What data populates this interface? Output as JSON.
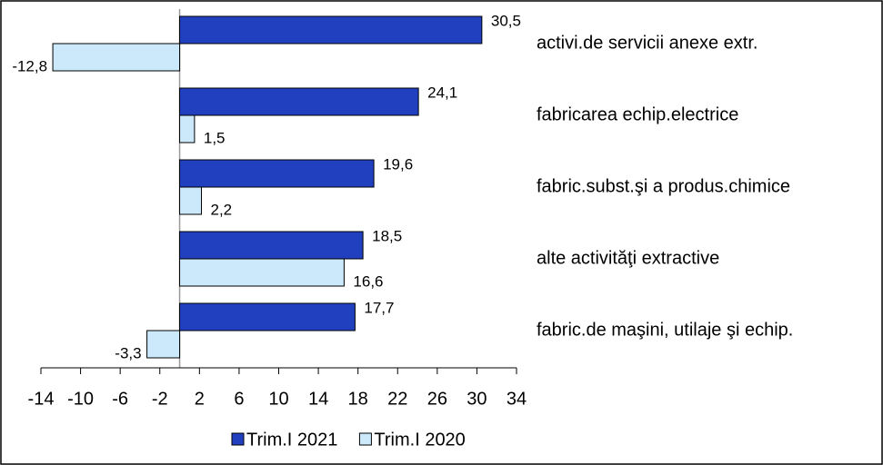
{
  "chart_data": {
    "type": "bar",
    "orientation": "horizontal",
    "categories": [
      "activi.de servicii anexe extr.",
      "fabricarea echip.electrice",
      "fabric.subst.şi a produs.chimice",
      "alte activităţi extractive",
      "fabric.de maşini, utilaje şi echip."
    ],
    "series": [
      {
        "name": "Trim.I 2021",
        "color": "#2040c0",
        "values": [
          30.5,
          24.1,
          19.6,
          18.5,
          17.7
        ],
        "value_labels": [
          "30,5",
          "24,1",
          "19,6",
          "18,5",
          "17,7"
        ]
      },
      {
        "name": "Trim.I 2020",
        "color": "#cce8fb",
        "values": [
          -12.8,
          1.5,
          2.2,
          16.6,
          -3.3
        ],
        "value_labels": [
          "-12,8",
          "1,5",
          "2,2",
          "16,6",
          "-3,3"
        ]
      }
    ],
    "xlim": [
      -14,
      34
    ],
    "xticks": [
      -14,
      -10,
      -6,
      -2,
      2,
      6,
      10,
      14,
      18,
      22,
      26,
      30,
      34
    ],
    "legend": "bottom"
  }
}
